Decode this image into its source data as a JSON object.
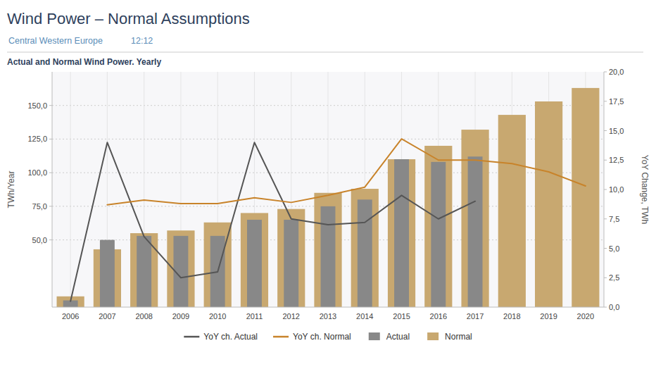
{
  "chart_data": {
    "type": "bar",
    "title": "Wind Power – Normal Assumptions",
    "subtitle": [
      "Central Western Europe",
      "12:12"
    ],
    "annotations": [
      "Actual and Normal Wind Power. Yearly"
    ],
    "categories": [
      2006,
      2007,
      2008,
      2009,
      2010,
      2011,
      2012,
      2013,
      2014,
      2015,
      2016,
      2017,
      2018,
      2019,
      2020
    ],
    "series": [
      {
        "name": "YoY ch. Actual",
        "type": "line",
        "axis": "y2",
        "color": "#555555",
        "values": [
          0.5,
          14.0,
          6.0,
          2.5,
          3.0,
          14.0,
          7.5,
          7.0,
          7.2,
          9.5,
          7.5,
          9.0,
          null,
          null,
          null
        ]
      },
      {
        "name": "YoY ch. Normal",
        "type": "line",
        "axis": "y2",
        "color": "#c8832a",
        "values": [
          null,
          8.7,
          9.1,
          8.8,
          8.8,
          9.3,
          8.9,
          9.5,
          10.2,
          14.3,
          12.5,
          12.5,
          12.2,
          11.5,
          10.3
        ]
      },
      {
        "name": "Actual",
        "type": "bar",
        "color": "#888888",
        "values": [
          5,
          50,
          53,
          53,
          53,
          65,
          65,
          75,
          80,
          110,
          108,
          112,
          0,
          0,
          0
        ]
      },
      {
        "name": "Normal",
        "type": "bar",
        "color": "#c8a870",
        "values": [
          8,
          43,
          55,
          57,
          63,
          70,
          73,
          85,
          88,
          110,
          120,
          132,
          143,
          153,
          163
        ]
      }
    ],
    "ylim": [
      0,
      175
    ],
    "yticks": [
      {
        "value": 50,
        "label": "50,0"
      },
      {
        "value": 75,
        "label": "75,0"
      },
      {
        "value": 100,
        "label": "100,0"
      },
      {
        "value": 125,
        "label": "125,0"
      },
      {
        "value": 150,
        "label": "150,0"
      }
    ],
    "y2lim": [
      0,
      20
    ],
    "y2ticks": [
      {
        "value": 0.0,
        "label": "0,0"
      },
      {
        "value": 2.5,
        "label": "2,5"
      },
      {
        "value": 5.0,
        "label": "5,0"
      },
      {
        "value": 7.5,
        "label": "7,5"
      },
      {
        "value": 10.0,
        "label": "10,0"
      },
      {
        "value": 12.5,
        "label": "12,5"
      },
      {
        "value": 15.0,
        "label": "15,0"
      },
      {
        "value": 17.5,
        "label": "17,5"
      },
      {
        "value": 20.0,
        "label": "20,0"
      }
    ],
    "ylabel": "TWh/Year",
    "y2label": "YoY Change, TWh",
    "grid": true,
    "legend": "bottom"
  }
}
